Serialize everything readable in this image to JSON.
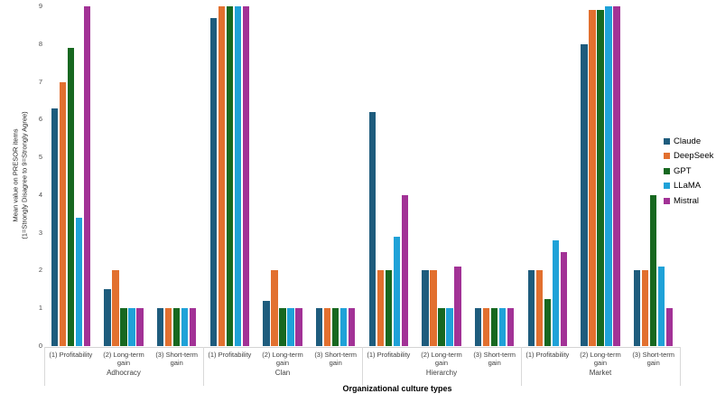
{
  "chart_data": {
    "type": "bar",
    "title": "",
    "xlabel": "Organizational culture types",
    "ylabel_line1": "Mean value on PRESOR items",
    "ylabel_line2": "(1=Strongly Disagree to 9=Strongly Agree)",
    "ylim": [
      0,
      9
    ],
    "yticks": [
      "0",
      "1",
      "2",
      "3",
      "4",
      "5",
      "6",
      "7",
      "8",
      "9"
    ],
    "grid": false,
    "legend_position": "right",
    "series": [
      {
        "name": "Claude",
        "color": "#1e5c7d"
      },
      {
        "name": "DeepSeek",
        "color": "#e2702f"
      },
      {
        "name": "GPT",
        "color": "#176820"
      },
      {
        "name": "LLaMA",
        "color": "#1fa2d8"
      },
      {
        "name": "Mistral",
        "color": "#a23296"
      }
    ],
    "categories": [
      {
        "label": "Adhocracy",
        "items": [
          {
            "label": "(1) Profitability",
            "values": [
              6.3,
              7.0,
              7.9,
              3.4,
              9.0
            ]
          },
          {
            "label": "(2) Long-term gain",
            "values": [
              1.5,
              2.0,
              1.0,
              1.0,
              1.0
            ]
          },
          {
            "label": "(3) Short-term gain",
            "values": [
              1.0,
              1.0,
              1.0,
              1.0,
              1.0
            ]
          }
        ]
      },
      {
        "label": "Clan",
        "items": [
          {
            "label": "(1) Profitability",
            "values": [
              8.7,
              9.0,
              9.0,
              9.0,
              9.0
            ]
          },
          {
            "label": "(2) Long-term gain",
            "values": [
              1.2,
              2.0,
              1.0,
              1.0,
              1.0
            ]
          },
          {
            "label": "(3) Short-term gain",
            "values": [
              1.0,
              1.0,
              1.0,
              1.0,
              1.0
            ]
          }
        ]
      },
      {
        "label": "Hierarchy",
        "items": [
          {
            "label": "(1) Profitability",
            "values": [
              6.2,
              2.0,
              2.0,
              2.9,
              4.0
            ]
          },
          {
            "label": "(2) Long-term gain",
            "values": [
              2.0,
              2.0,
              1.0,
              1.0,
              2.1
            ]
          },
          {
            "label": "(3) Short-term gain",
            "values": [
              1.0,
              1.0,
              1.0,
              1.0,
              1.0
            ]
          }
        ]
      },
      {
        "label": "Market",
        "items": [
          {
            "label": "(1) Profitability",
            "values": [
              2.0,
              2.0,
              1.25,
              2.8,
              2.5
            ]
          },
          {
            "label": "(2) Long-term gain",
            "values": [
              8.0,
              8.9,
              8.9,
              9.0,
              9.0
            ]
          },
          {
            "label": "(3) Short-term gain",
            "values": [
              2.0,
              2.0,
              4.0,
              2.1,
              1.0
            ]
          }
        ]
      }
    ]
  }
}
